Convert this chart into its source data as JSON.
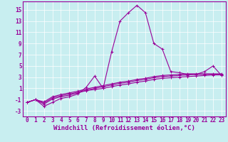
{
  "background_color": "#c8eef0",
  "line_color": "#990099",
  "marker": "+",
  "markersize": 3,
  "linewidth": 0.8,
  "xlabel": "Windchill (Refroidissement éolien,°C)",
  "xlabel_fontsize": 6.5,
  "tick_fontsize": 5.5,
  "xlim": [
    -0.5,
    23.5
  ],
  "ylim": [
    -4.0,
    16.5
  ],
  "xticks": [
    0,
    1,
    2,
    3,
    4,
    5,
    6,
    7,
    8,
    9,
    10,
    11,
    12,
    13,
    14,
    15,
    16,
    17,
    18,
    19,
    20,
    21,
    22,
    23
  ],
  "yticks": [
    -3,
    -1,
    1,
    3,
    5,
    7,
    9,
    11,
    13,
    15
  ],
  "series": [
    [
      -1.5,
      -1.0,
      -2.2,
      -1.5,
      -0.8,
      -0.5,
      0.0,
      1.2,
      3.2,
      1.0,
      7.5,
      13.0,
      14.5,
      15.8,
      14.5,
      9.0,
      8.0,
      4.0,
      3.8,
      3.5,
      3.5,
      4.0,
      5.0,
      3.3
    ],
    [
      -1.5,
      -1.0,
      -1.8,
      -0.9,
      -0.5,
      -0.2,
      0.2,
      0.6,
      0.8,
      1.0,
      1.3,
      1.6,
      1.8,
      2.1,
      2.3,
      2.6,
      2.8,
      2.9,
      3.0,
      3.1,
      3.2,
      3.3,
      3.4,
      3.4
    ],
    [
      -1.5,
      -1.0,
      -1.6,
      -0.7,
      -0.3,
      0.0,
      0.3,
      0.7,
      1.0,
      1.3,
      1.6,
      1.9,
      2.1,
      2.4,
      2.6,
      2.9,
      3.1,
      3.2,
      3.3,
      3.4,
      3.5,
      3.5,
      3.5,
      3.5
    ],
    [
      -1.5,
      -1.0,
      -1.4,
      -0.5,
      -0.1,
      0.2,
      0.5,
      0.9,
      1.2,
      1.5,
      1.8,
      2.1,
      2.3,
      2.6,
      2.8,
      3.1,
      3.3,
      3.4,
      3.5,
      3.6,
      3.6,
      3.6,
      3.6,
      3.6
    ]
  ]
}
